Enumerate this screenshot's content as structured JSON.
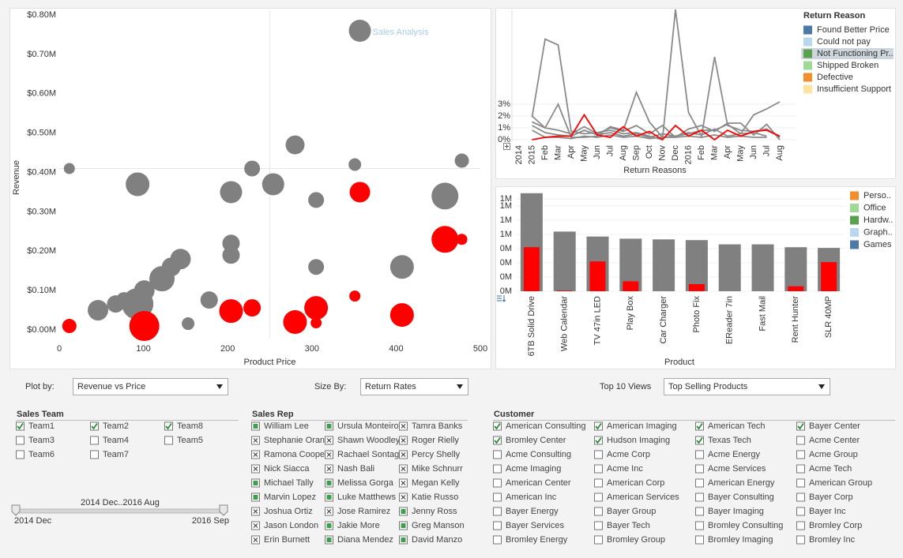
{
  "chart_data": [
    {
      "type": "scatter",
      "title": "Sales Analysis",
      "x_label": "Product Price",
      "y_label": "Revenue",
      "xlim": [
        0,
        500
      ],
      "xticks": [
        0,
        100,
        200,
        300,
        400,
        500
      ],
      "ylim": [
        -0.02,
        0.81
      ],
      "yticks": [
        {
          "value": 0,
          "label": "$0.00M"
        },
        {
          "value": 0.1,
          "label": "$0.10M"
        },
        {
          "value": 0.2,
          "label": "$0.20M"
        },
        {
          "value": 0.3,
          "label": "$0.30M"
        },
        {
          "value": 0.4,
          "label": "$0.40M"
        },
        {
          "value": 0.5,
          "label": "$0.50M"
        },
        {
          "value": 0.6,
          "label": "$0.60M"
        },
        {
          "value": 0.7,
          "label": "$0.70M"
        },
        {
          "value": 0.8,
          "label": "$0.80M"
        }
      ],
      "reference_lines": {
        "x": 250,
        "y": 0.41
      },
      "series": [
        {
          "color": "#808080",
          "x": [
            12,
            46,
            67,
            77,
            93,
            93,
            101,
            122,
            133,
            144,
            153,
            178,
            204,
            204,
            204,
            229,
            254,
            280,
            305,
            305,
            351,
            357,
            407,
            458,
            478
          ],
          "values": [
            0.41,
            0.05,
            0.066,
            0.076,
            0.37,
            0.066,
            0.1,
            0.13,
            0.16,
            0.18,
            0.016,
            0.076,
            0.35,
            0.22,
            0.19,
            0.41,
            0.37,
            0.47,
            0.33,
            0.16,
            0.42,
            0.76,
            0.16,
            0.34,
            0.43
          ],
          "sizes": [
            7,
            13,
            11,
            10,
            15,
            20,
            13,
            16,
            12,
            13,
            8,
            11,
            14,
            11,
            11,
            10,
            14,
            12,
            10,
            10,
            8,
            14,
            15,
            17,
            9
          ]
        },
        {
          "color": "#ff0000",
          "x": [
            12,
            101,
            204,
            229,
            280,
            305,
            305,
            357,
            351,
            407,
            458,
            478
          ],
          "values": [
            0.01,
            0.01,
            0.048,
            0.056,
            0.02,
            0.056,
            0.018,
            0.35,
            0.086,
            0.038,
            0.23,
            0.23
          ],
          "sizes": [
            9,
            19,
            15,
            11,
            15,
            15,
            7,
            13,
            7,
            15,
            17,
            7
          ]
        }
      ]
    },
    {
      "type": "line",
      "x_label": "Return Reasons",
      "legend_title": "Return Reason",
      "categories": [
        "2014",
        "2015",
        "Feb",
        "Mar",
        "Apr",
        "May",
        "Jun",
        "Jul",
        "Aug",
        "Sep",
        "Oct",
        "Nov",
        "Dec",
        "2016",
        "Feb",
        "Mar",
        "Apr",
        "May",
        "Jun",
        "Jul",
        "Aug"
      ],
      "ylim": [
        -0.2,
        11
      ],
      "yticks": [
        {
          "value": 0,
          "label": "0%"
        },
        {
          "value": 1,
          "label": "1%"
        },
        {
          "value": 2,
          "label": "2%"
        },
        {
          "value": 3,
          "label": "3%"
        }
      ],
      "grid": true,
      "series": [
        {
          "name": "Found Better Price",
          "color": "#4e79a7",
          "line_color": "#8a8a8a",
          "values": [
            null,
            1.9,
            8.5,
            8,
            0.7,
            0.5,
            0.6,
            0.8,
            0.5,
            0.6,
            0.3,
            0,
            11,
            2.3,
            0.3,
            7,
            1.2,
            0.8,
            0.7,
            0.9,
            0.2
          ]
        },
        {
          "name": "Could not pay",
          "color": "#b9d7ee",
          "line_color": "#8a8a8a",
          "values": [
            null,
            2,
            1,
            3,
            0.2,
            0.2,
            0.3,
            1.1,
            0.8,
            4,
            1.5,
            0.2,
            0.3,
            0.5,
            0.8,
            0.8,
            1.3,
            0.5,
            2.1,
            2.6,
            3.2
          ]
        },
        {
          "name": "Not Functioning Pr..",
          "color": "#59a14f",
          "line_color": "#ff0000",
          "highlighted": true,
          "values": [
            null,
            0,
            0.2,
            0.3,
            0.3,
            2.1,
            0.4,
            0.2,
            1.1,
            0.3,
            0.7,
            0,
            1.2,
            0.3,
            0.8,
            0,
            0.8,
            0.3,
            0.7,
            0.8,
            0.3
          ]
        },
        {
          "name": "Shipped Broken",
          "color": "#a0d995",
          "line_color": "#8a8a8a",
          "values": [
            null,
            1.5,
            1,
            0.8,
            0.5,
            1.1,
            0.5,
            1,
            0.7,
            1.2,
            0.5,
            1.2,
            0.2,
            0.9,
            1.2,
            0.7,
            1.4,
            1.4,
            0.4,
            1.3,
            0
          ]
        },
        {
          "name": "Defective",
          "color": "#f28e2b",
          "line_color": "#8a8a8a",
          "values": [
            null,
            1.2,
            0.6,
            0.4,
            0.3,
            0.8,
            0.4,
            0.6,
            0.3,
            0.5,
            0.2,
            0.5,
            0.3,
            0.6,
            0.4,
            0.9,
            0.3,
            0.5,
            0.6,
            0.3,
            null
          ]
        },
        {
          "name": "Insufficient Support",
          "color": "#ffe3a3",
          "line_color": "#8a8a8a",
          "values": [
            null,
            0.8,
            0.2,
            0.2,
            0.1,
            0.3,
            0.2,
            0.4,
            0.2,
            0.3,
            0.1,
            0.2,
            0.2,
            0.3,
            0.2,
            0.4,
            0.2,
            0.3,
            0.2,
            0.2,
            null
          ]
        }
      ]
    },
    {
      "type": "bar",
      "x_label": "Product",
      "categories": [
        "6TB Solid Drive",
        "Web Calendar",
        "TV 47in LED",
        "Play Box",
        "Car Charger",
        "Photo Fix",
        "EReader 7in",
        "Fast Mail",
        "Rent Hunter",
        "SLR 40MP"
      ],
      "ylim": [
        0,
        1.4
      ],
      "yticks": [
        {
          "value": 0,
          "label": "0M"
        },
        {
          "value": 0.2,
          "label": "0M"
        },
        {
          "value": 0.4,
          "label": "0M"
        },
        {
          "value": 0.6,
          "label": "0M"
        },
        {
          "value": 0.8,
          "label": "1M"
        },
        {
          "value": 1.0,
          "label": "1M"
        },
        {
          "value": 1.2,
          "label": "1M"
        },
        {
          "value": 1.3,
          "label": "1M"
        }
      ],
      "grid": true,
      "series": [
        {
          "color": "#808080",
          "values": [
            1.38,
            0.84,
            0.77,
            0.74,
            0.73,
            0.72,
            0.66,
            0.66,
            0.62,
            0.61
          ]
        },
        {
          "color": "#ff0000",
          "values": [
            0.62,
            0.01,
            0.42,
            0.14,
            0,
            0.1,
            0,
            0,
            0.07,
            0.41
          ]
        }
      ],
      "legend": [
        {
          "name": "Perso..",
          "color": "#f28e2b"
        },
        {
          "name": "Office",
          "color": "#a0d995"
        },
        {
          "name": "Hardw..",
          "color": "#59a14f"
        },
        {
          "name": "Graph..",
          "color": "#b9d7ee"
        },
        {
          "name": "Games",
          "color": "#4e79a7"
        }
      ]
    }
  ],
  "controls": [
    {
      "label": "Plot by:",
      "value": "Revenue vs Price"
    },
    {
      "label": "Size By:",
      "value": "Return Rates"
    },
    {
      "label": "Top 10 Views",
      "value": "Top Selling Products"
    }
  ],
  "filters": [
    {
      "title": "Sales Team",
      "columns": [
        [
          {
            "label": "Team1",
            "state": "checked"
          },
          {
            "label": "Team3",
            "state": "unchecked"
          },
          {
            "label": "Team6",
            "state": "unchecked"
          }
        ],
        [
          {
            "label": "Team2",
            "state": "checked"
          },
          {
            "label": "Team4",
            "state": "unchecked"
          },
          {
            "label": "Team7",
            "state": "unchecked"
          }
        ],
        [
          {
            "label": "Team8",
            "state": "checked"
          },
          {
            "label": "Team5",
            "state": "unchecked"
          }
        ]
      ]
    },
    {
      "title": "Sales Rep",
      "columns": [
        [
          {
            "label": "William Lee",
            "state": "included"
          },
          {
            "label": "Stephanie Oran",
            "state": "excluded"
          },
          {
            "label": "Ramona Coope",
            "state": "excluded"
          },
          {
            "label": "Nick Siacca",
            "state": "excluded"
          },
          {
            "label": "Michael Tally",
            "state": "included"
          },
          {
            "label": "Marvin Lopez",
            "state": "included"
          },
          {
            "label": "Joshua Ortiz",
            "state": "excluded"
          },
          {
            "label": "Jason London",
            "state": "excluded"
          },
          {
            "label": "Erin Burnett",
            "state": "excluded"
          }
        ],
        [
          {
            "label": "Ursula Monteiro",
            "state": "included"
          },
          {
            "label": "Shawn Woodley",
            "state": "excluded"
          },
          {
            "label": "Rachael Sontag",
            "state": "excluded"
          },
          {
            "label": "Nash Bali",
            "state": "excluded"
          },
          {
            "label": "Melissa Gorga",
            "state": "included"
          },
          {
            "label": "Luke Matthews",
            "state": "included"
          },
          {
            "label": "Jose Ramirez",
            "state": "excluded"
          },
          {
            "label": "Jakie More",
            "state": "included"
          },
          {
            "label": "Diana Mendez",
            "state": "included"
          }
        ],
        [
          {
            "label": "Tamra Banks",
            "state": "excluded"
          },
          {
            "label": "Roger Rielly",
            "state": "excluded"
          },
          {
            "label": "Percy Shelly",
            "state": "excluded"
          },
          {
            "label": "Mike Schnurr",
            "state": "excluded"
          },
          {
            "label": "Megan Kelly",
            "state": "excluded"
          },
          {
            "label": "Katie Russo",
            "state": "excluded"
          },
          {
            "label": "Jenny Ross",
            "state": "included"
          },
          {
            "label": "Greg Manson",
            "state": "included"
          },
          {
            "label": "David Manzo",
            "state": "included"
          }
        ]
      ]
    },
    {
      "title": "Customer",
      "columns": [
        [
          {
            "label": "American Consulting",
            "state": "checked"
          },
          {
            "label": "Bromley Center",
            "state": "checked"
          },
          {
            "label": "Acme Consulting",
            "state": "unchecked"
          },
          {
            "label": "Acme Imaging",
            "state": "unchecked"
          },
          {
            "label": "American Center",
            "state": "unchecked"
          },
          {
            "label": "American Inc",
            "state": "unchecked"
          },
          {
            "label": "Bayer Energy",
            "state": "unchecked"
          },
          {
            "label": "Bayer Services",
            "state": "unchecked"
          },
          {
            "label": "Bromley Energy",
            "state": "unchecked"
          }
        ],
        [
          {
            "label": "American Imaging",
            "state": "checked"
          },
          {
            "label": "Hudson Imaging",
            "state": "checked"
          },
          {
            "label": "Acme Corp",
            "state": "unchecked"
          },
          {
            "label": "Acme Inc",
            "state": "unchecked"
          },
          {
            "label": "American Corp",
            "state": "unchecked"
          },
          {
            "label": "American Services",
            "state": "unchecked"
          },
          {
            "label": "Bayer Group",
            "state": "unchecked"
          },
          {
            "label": "Bayer Tech",
            "state": "unchecked"
          },
          {
            "label": "Bromley Group",
            "state": "unchecked"
          }
        ],
        [
          {
            "label": "American Tech",
            "state": "checked"
          },
          {
            "label": "Texas Tech",
            "state": "checked"
          },
          {
            "label": "Acme Energy",
            "state": "unchecked"
          },
          {
            "label": "Acme Services",
            "state": "unchecked"
          },
          {
            "label": "American Energy",
            "state": "unchecked"
          },
          {
            "label": "Bayer Consulting",
            "state": "unchecked"
          },
          {
            "label": "Bayer Imaging",
            "state": "unchecked"
          },
          {
            "label": "Bromley Consulting",
            "state": "unchecked"
          },
          {
            "label": "Bromley Imaging",
            "state": "unchecked"
          }
        ],
        [
          {
            "label": "Bayer Center",
            "state": "checked"
          },
          {
            "label": "Acme Center",
            "state": "unchecked"
          },
          {
            "label": "Acme Group",
            "state": "unchecked"
          },
          {
            "label": "Acme Tech",
            "state": "unchecked"
          },
          {
            "label": "American Group",
            "state": "unchecked"
          },
          {
            "label": "Bayer Corp",
            "state": "unchecked"
          },
          {
            "label": "Bayer Inc",
            "state": "unchecked"
          },
          {
            "label": "Bromley Corp",
            "state": "unchecked"
          },
          {
            "label": "Bromley Inc",
            "state": "unchecked"
          }
        ]
      ]
    }
  ],
  "slider": {
    "label": "2014 Dec..2016 Aug",
    "min_label": "2014 Dec",
    "max_label": "2016 Sep"
  }
}
